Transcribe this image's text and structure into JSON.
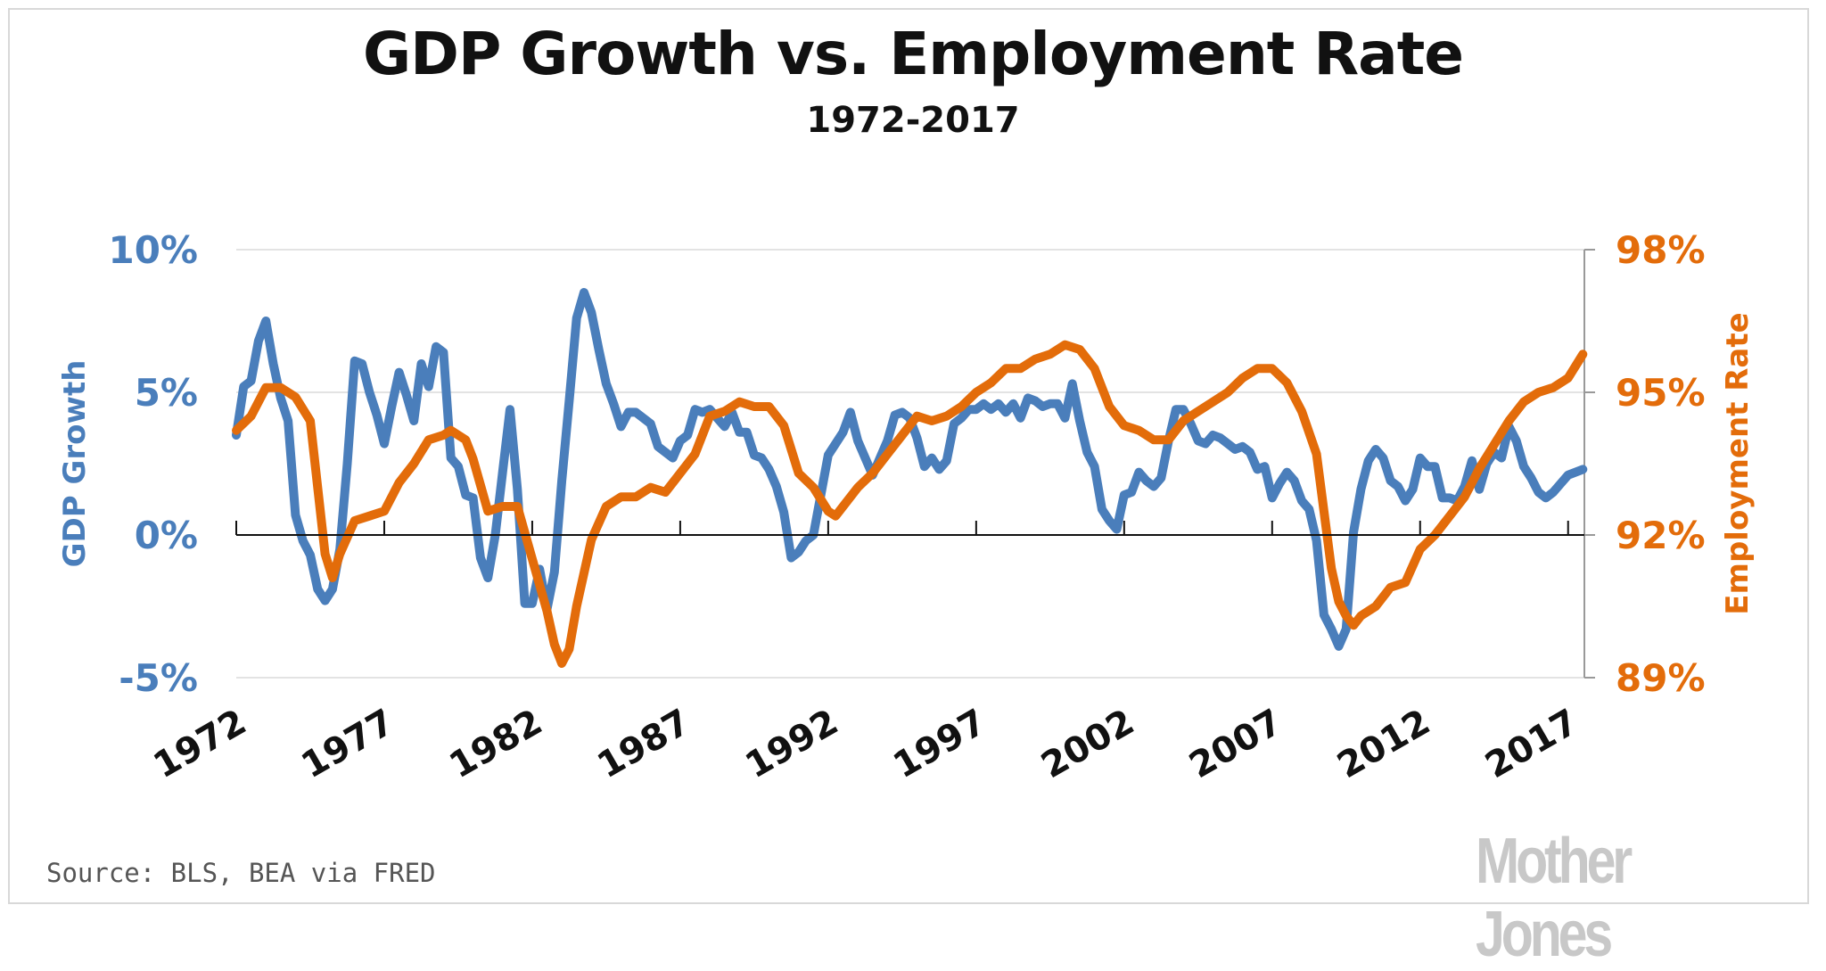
{
  "chart_data": {
    "type": "line",
    "title": "GDP Growth vs. Employment Rate",
    "subtitle": "1972-2017",
    "source": "Source: BLS, BEA via FRED",
    "logo": "Mother Jones",
    "x_ticks": [
      "1972",
      "1977",
      "1982",
      "1987",
      "1992",
      "1997",
      "2002",
      "2007",
      "2012",
      "2017"
    ],
    "x_range": [
      1972,
      2017.55
    ],
    "y_left": {
      "label": "GDP Growth",
      "range": [
        -5,
        10
      ],
      "ticks": [
        "-5%",
        "0%",
        "5%",
        "10%"
      ],
      "tick_values": [
        -5,
        0,
        5,
        10
      ],
      "color": "#4a7ebb"
    },
    "y_right": {
      "label": "Employment Rate",
      "range": [
        89,
        98
      ],
      "ticks": [
        "89%",
        "92%",
        "95%",
        "98%"
      ],
      "tick_values": [
        89,
        92,
        95,
        98
      ],
      "color": "#e36c0a"
    },
    "series": [
      {
        "name": "GDP Growth",
        "axis": "left",
        "color": "#4a7ebb",
        "x": [
          1972,
          1972.25,
          1972.5,
          1972.75,
          1973,
          1973.25,
          1973.5,
          1973.75,
          1974,
          1974.25,
          1974.5,
          1974.75,
          1975,
          1975.25,
          1975.5,
          1975.75,
          1976,
          1976.25,
          1976.5,
          1976.75,
          1977,
          1977.25,
          1977.5,
          1977.75,
          1978,
          1978.25,
          1978.5,
          1978.75,
          1979,
          1979.25,
          1979.5,
          1979.75,
          1980,
          1980.25,
          1980.5,
          1980.75,
          1981,
          1981.25,
          1981.5,
          1981.75,
          1982,
          1982.25,
          1982.5,
          1982.75,
          1983,
          1983.25,
          1983.5,
          1983.75,
          1984,
          1984.25,
          1984.5,
          1984.75,
          1985,
          1985.25,
          1985.5,
          1985.75,
          1986,
          1986.25,
          1986.5,
          1986.75,
          1987,
          1987.25,
          1987.5,
          1987.75,
          1988,
          1988.25,
          1988.5,
          1988.75,
          1989,
          1989.25,
          1989.5,
          1989.75,
          1990,
          1990.25,
          1990.5,
          1990.75,
          1991,
          1991.25,
          1991.5,
          1991.75,
          1992,
          1992.25,
          1992.5,
          1992.75,
          1993,
          1993.25,
          1993.5,
          1993.75,
          1994,
          1994.25,
          1994.5,
          1994.75,
          1995,
          1995.25,
          1995.5,
          1995.75,
          1996,
          1996.25,
          1996.5,
          1996.75,
          1997,
          1997.25,
          1997.5,
          1997.75,
          1998,
          1998.25,
          1998.5,
          1998.75,
          1999,
          1999.25,
          1999.5,
          1999.75,
          2000,
          2000.25,
          2000.5,
          2000.75,
          2001,
          2001.25,
          2001.5,
          2001.75,
          2002,
          2002.25,
          2002.5,
          2002.75,
          2003,
          2003.25,
          2003.5,
          2003.75,
          2004,
          2004.25,
          2004.5,
          2004.75,
          2005,
          2005.25,
          2005.5,
          2005.75,
          2006,
          2006.25,
          2006.5,
          2006.75,
          2007,
          2007.25,
          2007.5,
          2007.75,
          2008,
          2008.25,
          2008.5,
          2008.75,
          2009,
          2009.25,
          2009.5,
          2009.75,
          2010,
          2010.25,
          2010.5,
          2010.75,
          2011,
          2011.25,
          2011.5,
          2011.75,
          2012,
          2012.25,
          2012.5,
          2012.75,
          2013,
          2013.25,
          2013.5,
          2013.75,
          2014,
          2014.25,
          2014.5,
          2014.75,
          2015,
          2015.25,
          2015.5,
          2015.75,
          2016,
          2016.25,
          2016.5,
          2016.75,
          2017,
          2017.5
        ],
        "values": [
          3.5,
          5.2,
          5.4,
          6.8,
          7.5,
          6.0,
          4.8,
          4.0,
          0.7,
          -0.2,
          -0.7,
          -1.9,
          -2.3,
          -1.9,
          -0.5,
          2.5,
          6.1,
          6.0,
          5.0,
          4.2,
          3.2,
          4.5,
          5.7,
          4.9,
          4.0,
          6.0,
          5.2,
          6.6,
          6.4,
          2.7,
          2.4,
          1.4,
          1.3,
          -0.8,
          -1.5,
          0.0,
          2.2,
          4.4,
          1.6,
          -2.4,
          -2.4,
          -1.2,
          -2.6,
          -1.3,
          1.9,
          4.7,
          7.6,
          8.5,
          7.8,
          6.5,
          5.3,
          4.6,
          3.8,
          4.3,
          4.3,
          4.1,
          3.9,
          3.1,
          2.9,
          2.7,
          3.3,
          3.5,
          4.4,
          4.3,
          4.4,
          4.1,
          3.8,
          4.3,
          3.6,
          3.6,
          2.8,
          2.7,
          2.3,
          1.7,
          0.8,
          -0.8,
          -0.6,
          -0.2,
          0.0,
          1.4,
          2.8,
          3.2,
          3.6,
          4.3,
          3.3,
          2.7,
          2.1,
          2.7,
          3.3,
          4.2,
          4.3,
          4.1,
          3.4,
          2.4,
          2.7,
          2.3,
          2.6,
          3.9,
          4.1,
          4.4,
          4.4,
          4.6,
          4.4,
          4.6,
          4.3,
          4.6,
          4.1,
          4.8,
          4.7,
          4.5,
          4.6,
          4.6,
          4.1,
          5.3,
          4.0,
          2.9,
          2.4,
          0.9,
          0.5,
          0.2,
          1.4,
          1.5,
          2.2,
          1.9,
          1.7,
          2.0,
          3.3,
          4.4,
          4.4,
          3.9,
          3.3,
          3.2,
          3.5,
          3.4,
          3.2,
          3.0,
          3.1,
          2.9,
          2.3,
          2.4,
          1.3,
          1.8,
          2.2,
          1.9,
          1.2,
          0.9,
          -0.2,
          -2.8,
          -3.3,
          -3.9,
          -3.3,
          0.1,
          1.6,
          2.6,
          3.0,
          2.7,
          1.9,
          1.7,
          1.2,
          1.6,
          2.7,
          2.4,
          2.4,
          1.3,
          1.3,
          1.2,
          1.7,
          2.6,
          1.6,
          2.5,
          2.9,
          2.7,
          3.8,
          3.3,
          2.4,
          2.0,
          1.5,
          1.3,
          1.5,
          1.8,
          2.1,
          2.3
        ]
      },
      {
        "name": "Employment Rate",
        "axis": "right",
        "color": "#e36c0a",
        "x": [
          1972,
          1972.5,
          1973,
          1973.5,
          1974,
          1974.5,
          1975,
          1975.25,
          1975.5,
          1976,
          1976.5,
          1977,
          1977.5,
          1978,
          1978.5,
          1979,
          1979.25,
          1979.75,
          1980,
          1980.5,
          1981,
          1981.5,
          1982,
          1982.5,
          1982.75,
          1983,
          1983.25,
          1983.5,
          1984,
          1984.5,
          1985,
          1985.5,
          1986,
          1986.5,
          1987,
          1987.5,
          1988,
          1988.5,
          1989,
          1989.5,
          1990,
          1990.5,
          1991,
          1991.5,
          1992,
          1992.25,
          1992.5,
          1993,
          1993.5,
          1994,
          1994.5,
          1995,
          1995.5,
          1996,
          1996.5,
          1997,
          1997.5,
          1998,
          1998.5,
          1999,
          1999.5,
          2000,
          2000.5,
          2001,
          2001.5,
          2002,
          2002.5,
          2003,
          2003.5,
          2004,
          2004.5,
          2005,
          2005.5,
          2006,
          2006.5,
          2007,
          2007.5,
          2008,
          2008.5,
          2008.75,
          2009,
          2009.25,
          2009.5,
          2009.75,
          2010,
          2010.5,
          2011,
          2011.5,
          2012,
          2012.5,
          2013,
          2013.5,
          2014,
          2014.5,
          2015,
          2015.5,
          2016,
          2016.5,
          2017,
          2017.5
        ],
        "values": [
          94.2,
          94.5,
          95.1,
          95.1,
          94.9,
          94.4,
          91.6,
          91.1,
          91.6,
          92.3,
          92.4,
          92.5,
          93.1,
          93.5,
          94.0,
          94.1,
          94.2,
          94.0,
          93.6,
          92.5,
          92.6,
          92.6,
          91.5,
          90.4,
          89.7,
          89.3,
          89.6,
          90.5,
          91.9,
          92.6,
          92.8,
          92.8,
          93.0,
          92.9,
          93.3,
          93.7,
          94.5,
          94.6,
          94.8,
          94.7,
          94.7,
          94.3,
          93.3,
          93.0,
          92.5,
          92.4,
          92.6,
          93.0,
          93.3,
          93.7,
          94.1,
          94.5,
          94.4,
          94.5,
          94.7,
          95.0,
          95.2,
          95.5,
          95.5,
          95.7,
          95.8,
          96.0,
          95.9,
          95.5,
          94.7,
          94.3,
          94.2,
          94.0,
          94.0,
          94.4,
          94.6,
          94.8,
          95.0,
          95.3,
          95.5,
          95.5,
          95.2,
          94.6,
          93.7,
          92.5,
          91.3,
          90.6,
          90.3,
          90.1,
          90.3,
          90.5,
          90.9,
          91.0,
          91.7,
          92.0,
          92.4,
          92.8,
          93.4,
          93.9,
          94.4,
          94.8,
          95.0,
          95.1,
          95.3,
          95.8
        ]
      }
    ],
    "grid": true,
    "legend": "none"
  }
}
